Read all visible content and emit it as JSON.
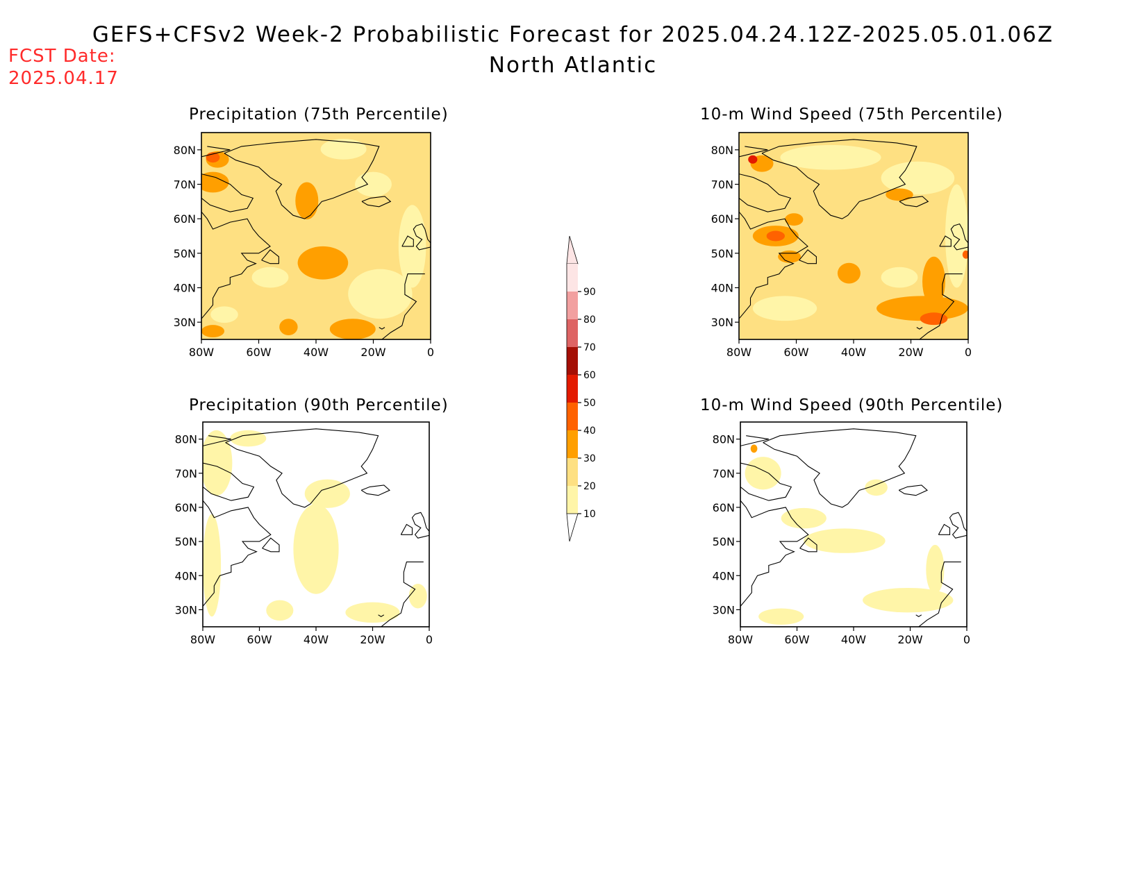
{
  "header": {
    "title": "GEFS+CFSv2 Week-2 Probabilistic Forecast for 2025.04.24.12Z-2025.05.01.06Z",
    "subtitle": "North Atlantic",
    "fcst_label": "FCST Date:",
    "fcst_date": "2025.04.17"
  },
  "panels": {
    "p75": {
      "title": "Precipitation (75th Percentile)",
      "level": "moderate"
    },
    "p90": {
      "title": "Precipitation (90th Percentile)",
      "level": "low"
    },
    "w75": {
      "title": "10-m Wind Speed (75th Percentile)",
      "level": "moderate"
    },
    "w90": {
      "title": "10-m Wind Speed (90th Percentile)",
      "level": "low"
    }
  },
  "axes": {
    "lat_labels": [
      "80N",
      "70N",
      "60N",
      "50N",
      "40N",
      "30N"
    ],
    "lon_labels": [
      "80W",
      "60W",
      "40W",
      "20W",
      "0"
    ],
    "lat_range": [
      25,
      85
    ],
    "lon_range": [
      -80,
      0
    ]
  },
  "colorbar": {
    "labels": [
      "10",
      "20",
      "30",
      "40",
      "50",
      "60",
      "70",
      "80",
      "90"
    ],
    "colors": [
      "#fff5a8",
      "#fee082",
      "#ff9f00",
      "#ff6200",
      "#e31a00",
      "#a50f05",
      "#de6464",
      "#f2a0a0",
      "#fde5e5"
    ]
  },
  "colors": {
    "fcst_text": "#ff2a2a"
  }
}
